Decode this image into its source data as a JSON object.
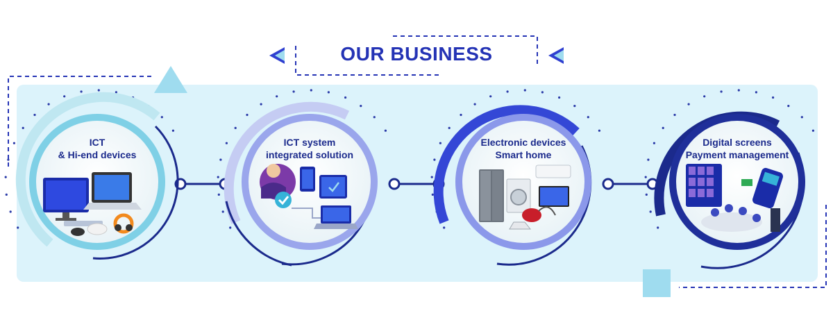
{
  "header": {
    "title": "OUR BUSINESS"
  },
  "colors": {
    "band": "#dcf3fb",
    "navy": "#1b2a8c",
    "blue": "#2f3fd0",
    "accent_cyan": "#9fdcef",
    "dot": "#2a3aa8"
  },
  "segments": [
    {
      "line1": "ICT",
      "line2": "& Hi-end devices",
      "illustration": "computer-devices-illustration"
    },
    {
      "line1": "ICT system",
      "line2": "integrated solution",
      "illustration": "integrated-solution-illustration"
    },
    {
      "line1": "Electronic devices",
      "line2": "Smart home",
      "illustration": "home-appliances-illustration"
    },
    {
      "line1": "Digital screens",
      "line2": "Payment management",
      "illustration": "payment-meeting-illustration"
    }
  ]
}
